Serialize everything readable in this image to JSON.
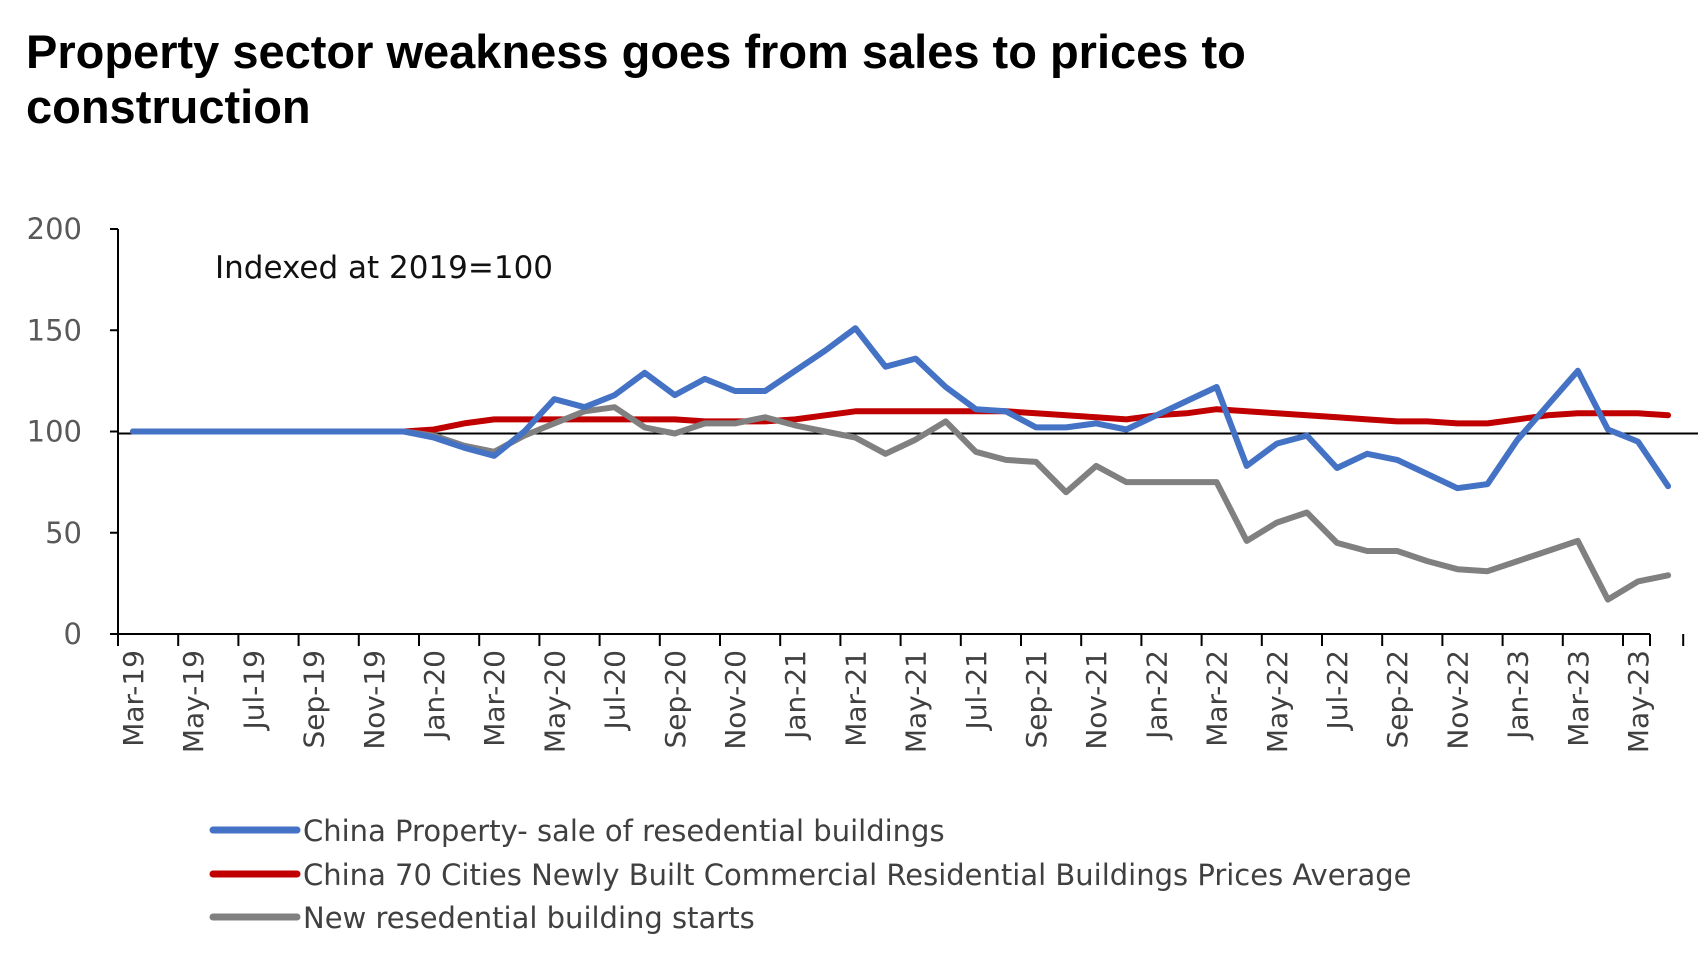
{
  "chart_data": {
    "type": "line",
    "title": "Property sector weakness goes from sales to prices to construction",
    "annotation": "Indexed at 2019=100",
    "ylim": [
      0,
      200
    ],
    "yticks": [
      0,
      50,
      100,
      150,
      200
    ],
    "reference_line": 100,
    "x": [
      "Mar-19",
      "Apr-19",
      "May-19",
      "Jun-19",
      "Jul-19",
      "Aug-19",
      "Sep-19",
      "Oct-19",
      "Nov-19",
      "Dec-19",
      "Jan-20",
      "Feb-20",
      "Mar-20",
      "Apr-20",
      "May-20",
      "Jun-20",
      "Jul-20",
      "Aug-20",
      "Sep-20",
      "Oct-20",
      "Nov-20",
      "Dec-20",
      "Jan-21",
      "Feb-21",
      "Mar-21",
      "Apr-21",
      "May-21",
      "Jun-21",
      "Jul-21",
      "Aug-21",
      "Sep-21",
      "Oct-21",
      "Nov-21",
      "Dec-21",
      "Jan-22",
      "Feb-22",
      "Mar-22",
      "Apr-22",
      "May-22",
      "Jun-22",
      "Jul-22",
      "Aug-22",
      "Sep-22",
      "Oct-22",
      "Nov-22",
      "Dec-22",
      "Jan-23",
      "Feb-23",
      "Mar-23",
      "Apr-23",
      "May-23",
      "Jun-23"
    ],
    "xtick_labels": [
      "Mar-19",
      "May-19",
      "Jul-19",
      "Sep-19",
      "Nov-19",
      "Jan-20",
      "Mar-20",
      "May-20",
      "Jul-20",
      "Sep-20",
      "Nov-20",
      "Jan-21",
      "Mar-21",
      "May-21",
      "Jul-21",
      "Sep-21",
      "Nov-21",
      "Jan-22",
      "Mar-22",
      "May-22",
      "Jul-22",
      "Sep-22",
      "Nov-22",
      "Jan-23",
      "Mar-23",
      "May-23"
    ],
    "legend_position": "bottom",
    "series": [
      {
        "name": "China Property- sale of resedential buildings",
        "color": "#4472C4",
        "values": [
          100,
          100,
          100,
          100,
          100,
          100,
          100,
          100,
          100,
          100,
          97,
          92,
          88,
          100,
          116,
          112,
          118,
          129,
          118,
          126,
          120,
          120,
          130,
          140,
          151,
          132,
          136,
          122,
          111,
          110,
          102,
          102,
          104,
          101,
          108,
          115,
          122,
          83,
          94,
          98,
          82,
          89,
          86,
          79,
          72,
          74,
          96,
          113,
          130,
          101,
          95,
          73
        ]
      },
      {
        "name": "China 70 Cities Newly Built Commercial Residential Buildings Prices Average",
        "color": "#C00000",
        "values": [
          100,
          100,
          100,
          100,
          100,
          100,
          100,
          100,
          100,
          100,
          101,
          104,
          106,
          106,
          106,
          106,
          106,
          106,
          106,
          105,
          105,
          105,
          106,
          108,
          110,
          110,
          110,
          110,
          110,
          110,
          109,
          108,
          107,
          106,
          108,
          109,
          111,
          110,
          109,
          108,
          107,
          106,
          105,
          105,
          104,
          104,
          106,
          108,
          109,
          109,
          109,
          108
        ]
      },
      {
        "name": "New resedential building starts",
        "color": "#808080",
        "values": [
          100,
          100,
          100,
          100,
          100,
          100,
          100,
          100,
          100,
          100,
          98,
          93,
          90,
          98,
          104,
          110,
          112,
          102,
          99,
          104,
          104,
          107,
          103,
          100,
          97,
          89,
          96,
          105,
          90,
          86,
          85,
          70,
          83,
          75,
          75,
          75,
          75,
          46,
          55,
          60,
          45,
          41,
          41,
          36,
          32,
          31,
          36,
          41,
          46,
          17,
          26,
          29
        ]
      }
    ]
  }
}
